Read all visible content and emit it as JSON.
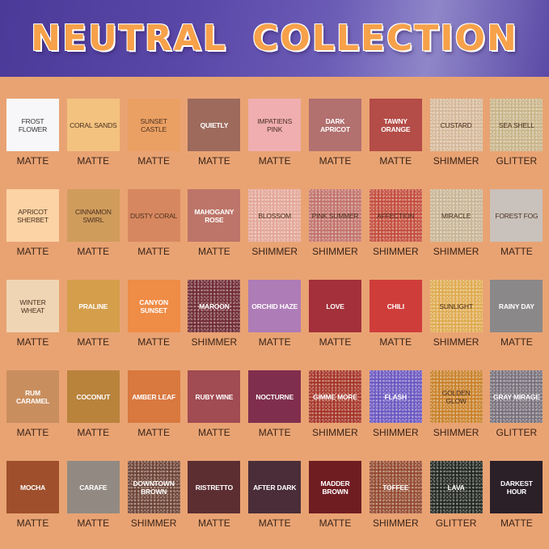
{
  "title": "NEUTRAL COLLECTION",
  "rows": [
    [
      {
        "name": "FROST FLOWER",
        "finish": "MATTE",
        "color": "#f7f7f9",
        "text": "#333"
      },
      {
        "name": "CORAL SANDS",
        "finish": "MATTE",
        "color": "#f3c27f",
        "text": "#4a3020"
      },
      {
        "name": "SUNSET CASTLE",
        "finish": "MATTE",
        "color": "#eba063",
        "text": "#4a3020"
      },
      {
        "name": "QUIETLY",
        "finish": "MATTE",
        "color": "#9d6a5c",
        "text": "#fff"
      },
      {
        "name": "IMPATIENS PINK",
        "finish": "MATTE",
        "color": "#f0aeb0",
        "text": "#4a3020"
      },
      {
        "name": "DARK APRICOT",
        "finish": "MATTE",
        "color": "#b2706f",
        "text": "#fff"
      },
      {
        "name": "TAWNY ORANGE",
        "finish": "MATTE",
        "color": "#b44c47",
        "text": "#fff"
      },
      {
        "name": "CUSTARD",
        "finish": "SHIMMER",
        "color": "#d5b898",
        "text": "#4a3020"
      },
      {
        "name": "SEA SHELL",
        "finish": "GLITTER",
        "color": "#c9b488",
        "text": "#4a3020"
      }
    ],
    [
      {
        "name": "APRICOT SHERBET",
        "finish": "MATTE",
        "color": "#fbd3a5",
        "text": "#4a3020"
      },
      {
        "name": "CINNAMON SWIRL",
        "finish": "MATTE",
        "color": "#cf9c5c",
        "text": "#4a3020"
      },
      {
        "name": "DUSTY CORAL",
        "finish": "MATTE",
        "color": "#d7875f",
        "text": "#4a3020"
      },
      {
        "name": "MAHOGANY ROSE",
        "finish": "MATTE",
        "color": "#bd7569",
        "text": "#fff"
      },
      {
        "name": "BLOSSOM",
        "finish": "SHIMMER",
        "color": "#e3a597",
        "text": "#4a3020"
      },
      {
        "name": "PINK SUMMER",
        "finish": "SHIMMER",
        "color": "#c1716a",
        "text": "#4a3020"
      },
      {
        "name": "AFFECTION",
        "finish": "SHIMMER",
        "color": "#c34c3b",
        "text": "#4a3020"
      },
      {
        "name": "MIRACLE",
        "finish": "SHIMMER",
        "color": "#c8b595",
        "text": "#4a3020"
      },
      {
        "name": "FOREST FOG",
        "finish": "MATTE",
        "color": "#c9c1bb",
        "text": "#4a3020"
      }
    ],
    [
      {
        "name": "WINTER WHEAT",
        "finish": "MATTE",
        "color": "#f0d5b4",
        "text": "#4a3020"
      },
      {
        "name": "PRALINE",
        "finish": "MATTE",
        "color": "#d49e4b",
        "text": "#fff"
      },
      {
        "name": "CANYON SUNSET",
        "finish": "MATTE",
        "color": "#ef8c46",
        "text": "#fff"
      },
      {
        "name": "MAROON",
        "finish": "SHIMMER",
        "color": "#6f2a33",
        "text": "#fff"
      },
      {
        "name": "ORCHID HAZE",
        "finish": "MATTE",
        "color": "#ae7cb6",
        "text": "#fff"
      },
      {
        "name": "LOVE",
        "finish": "MATTE",
        "color": "#a3303a",
        "text": "#fff"
      },
      {
        "name": "CHILI",
        "finish": "MATTE",
        "color": "#cf3d3b",
        "text": "#fff"
      },
      {
        "name": "SUNLIGHT",
        "finish": "SHIMMER",
        "color": "#dfaa4e",
        "text": "#4a3020"
      },
      {
        "name": "RAINY DAY",
        "finish": "MATTE",
        "color": "#8a8888",
        "text": "#fff"
      }
    ],
    [
      {
        "name": "RUM CARAMEL",
        "finish": "MATTE",
        "color": "#c98e5e",
        "text": "#fff"
      },
      {
        "name": "COCONUT",
        "finish": "MATTE",
        "color": "#b9833c",
        "text": "#fff"
      },
      {
        "name": "AMBER LEAF",
        "finish": "MATTE",
        "color": "#d9783f",
        "text": "#fff"
      },
      {
        "name": "RUBY WINE",
        "finish": "MATTE",
        "color": "#a14b52",
        "text": "#fff"
      },
      {
        "name": "NOCTURNE",
        "finish": "MATTE",
        "color": "#7f2f4d",
        "text": "#fff"
      },
      {
        "name": "GIMME MORE",
        "finish": "SHIMMER",
        "color": "#a43325",
        "text": "#fff"
      },
      {
        "name": "FLASH",
        "finish": "SHIMMER",
        "color": "#6b57c0",
        "text": "#fff"
      },
      {
        "name": "GOLDEN GLOW",
        "finish": "SHIMMER",
        "color": "#c9812a",
        "text": "#4a3020"
      },
      {
        "name": "GRAY MIRAGE",
        "finish": "GLITTER",
        "color": "#77707a",
        "text": "#fff"
      }
    ],
    [
      {
        "name": "MOCHA",
        "finish": "MATTE",
        "color": "#9f4f2c",
        "text": "#fff"
      },
      {
        "name": "CARAFE",
        "finish": "MATTE",
        "color": "#928a82",
        "text": "#fff"
      },
      {
        "name": "DOWNTOWN BROWN",
        "finish": "SHIMMER",
        "color": "#6c4234",
        "text": "#fff"
      },
      {
        "name": "RISTRETTO",
        "finish": "MATTE",
        "color": "#5c2e31",
        "text": "#fff"
      },
      {
        "name": "AFTER DARK",
        "finish": "MATTE",
        "color": "#4a2d38",
        "text": "#fff"
      },
      {
        "name": "MADDER BROWN",
        "finish": "MATTE",
        "color": "#701d22",
        "text": "#fff"
      },
      {
        "name": "TOFFEE",
        "finish": "SHIMMER",
        "color": "#93492f",
        "text": "#fff"
      },
      {
        "name": "LAVA",
        "finish": "GLITTER",
        "color": "#232721",
        "text": "#fff"
      },
      {
        "name": "DARKEST HOUR",
        "finish": "MATTE",
        "color": "#2b1f28",
        "text": "#fff"
      }
    ]
  ]
}
